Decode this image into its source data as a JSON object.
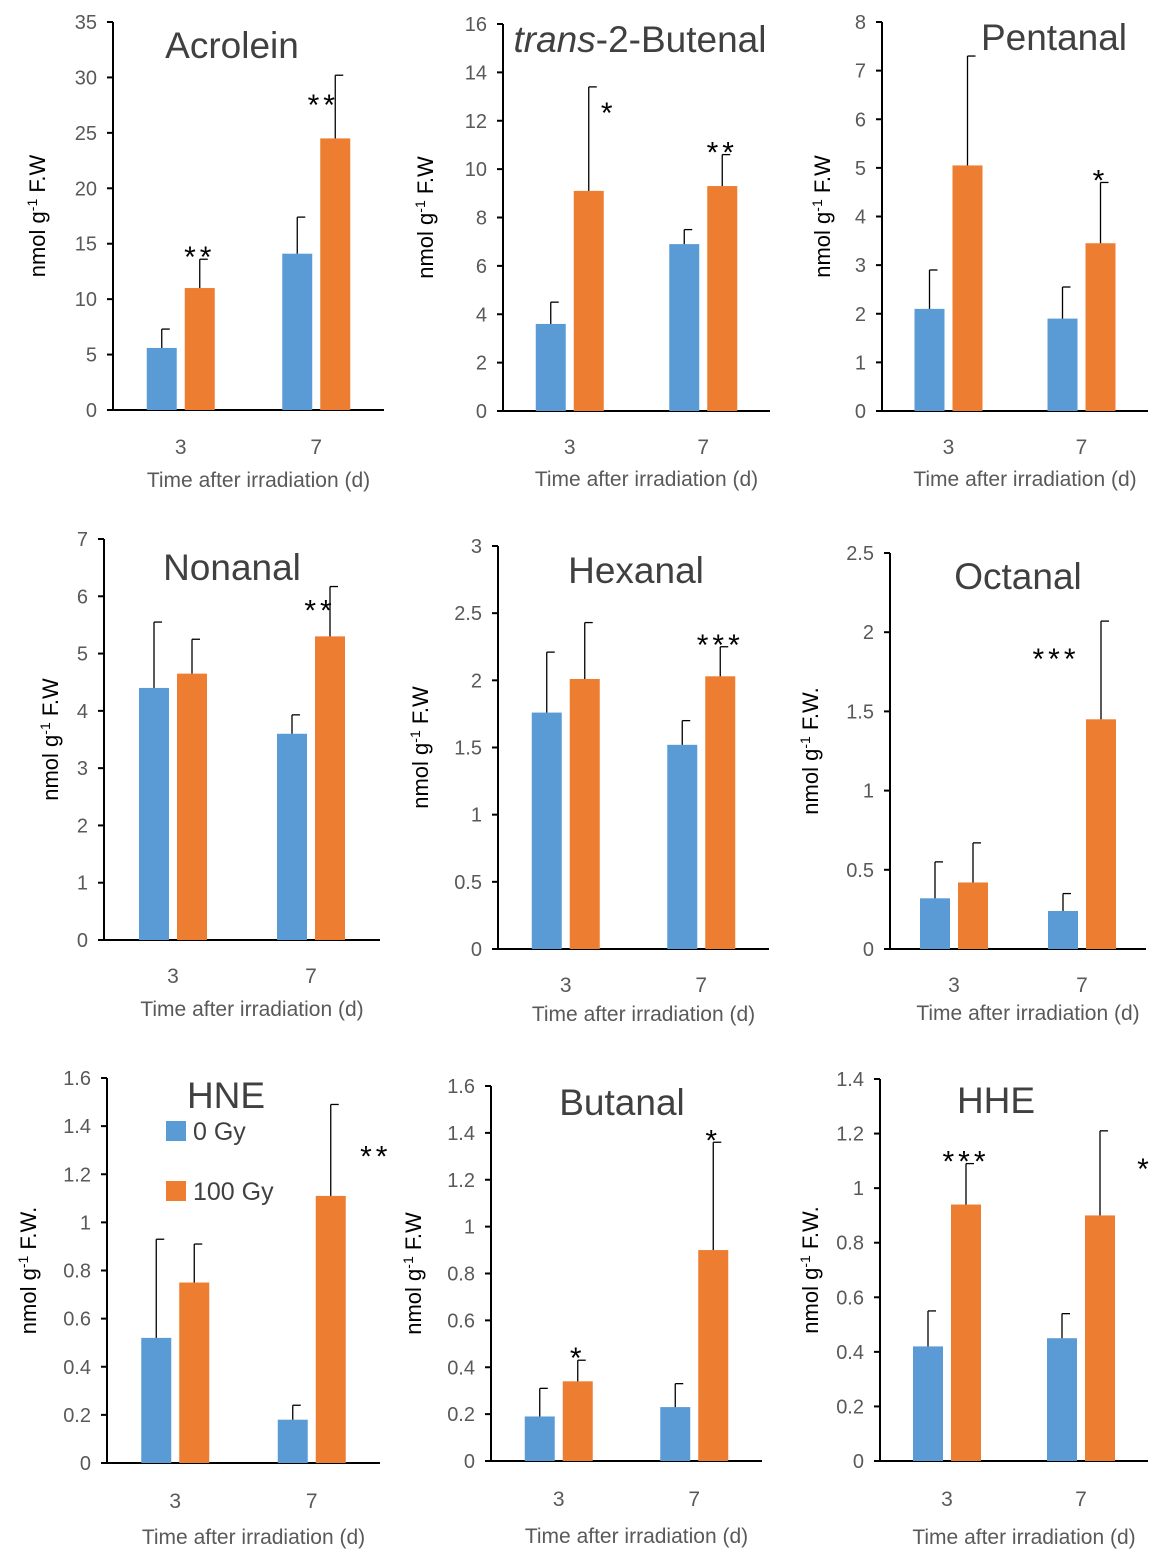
{
  "colors": {
    "control": "#5b9bd5",
    "irradiated": "#ed7d31",
    "axis": "#000000"
  },
  "chart_data": [
    {
      "type": "bar",
      "title": "Acrolein",
      "ylabel": "nmol g-1 F.W",
      "xlabel": "Time after irradiation (d)",
      "categories": [
        "3",
        "7"
      ],
      "ylim": [
        0,
        35
      ],
      "yticks": [
        "0",
        "5",
        "10",
        "15",
        "20",
        "25",
        "30",
        "35"
      ],
      "series": [
        {
          "values": [
            5.6,
            14.1
          ],
          "errors": [
            1.7,
            3.3
          ]
        },
        {
          "values": [
            11.0,
            24.5
          ],
          "errors": [
            2.6,
            5.7
          ]
        }
      ],
      "significance": [
        "**",
        "**"
      ]
    },
    {
      "type": "bar",
      "title": "trans-2-Butenal",
      "title_italic": "trans",
      "title_rest": "-2-Butenal",
      "ylabel": "nmol g-1 F.W",
      "xlabel": "Time after irradiation (d)",
      "categories": [
        "3",
        "7"
      ],
      "ylim": [
        0,
        16
      ],
      "yticks": [
        "0",
        "2",
        "4",
        "6",
        "8",
        "10",
        "12",
        "14",
        "16"
      ],
      "series": [
        {
          "values": [
            3.6,
            6.9
          ],
          "errors": [
            0.9,
            0.6
          ]
        },
        {
          "values": [
            9.1,
            9.3
          ],
          "errors": [
            4.3,
            1.3
          ]
        }
      ],
      "significance": [
        "*",
        "**"
      ]
    },
    {
      "type": "bar",
      "title": "Pentanal",
      "ylabel": "nmol g-1 F.W",
      "xlabel": "Time after irradiation (d)",
      "categories": [
        "3",
        "7"
      ],
      "ylim": [
        0,
        8
      ],
      "yticks": [
        "0",
        "1",
        "2",
        "3",
        "4",
        "5",
        "6",
        "7",
        "8"
      ],
      "series": [
        {
          "values": [
            2.1,
            1.9
          ],
          "errors": [
            0.8,
            0.65
          ]
        },
        {
          "values": [
            5.05,
            3.45
          ],
          "errors": [
            2.25,
            1.25
          ]
        }
      ],
      "significance": [
        "",
        "*"
      ]
    },
    {
      "type": "bar",
      "title": "Nonanal",
      "ylabel": "nmol g-1 F.W",
      "xlabel": "Time after irradiation (d)",
      "categories": [
        "3",
        "7"
      ],
      "ylim": [
        0,
        7
      ],
      "yticks": [
        "0",
        "1",
        "2",
        "3",
        "4",
        "5",
        "6",
        "7"
      ],
      "series": [
        {
          "values": [
            4.4,
            3.6
          ],
          "errors": [
            1.15,
            0.33
          ]
        },
        {
          "values": [
            4.65,
            5.3
          ],
          "errors": [
            0.6,
            0.87
          ]
        }
      ],
      "significance": [
        "",
        "**"
      ]
    },
    {
      "type": "bar",
      "title": "Hexanal",
      "ylabel": "nmol g-1 F.W",
      "xlabel": "Time after irradiation (d)",
      "categories": [
        "3",
        "7"
      ],
      "ylim": [
        0,
        3
      ],
      "yticks": [
        "0",
        "0.5",
        "1",
        "1.5",
        "2",
        "2.5",
        "3"
      ],
      "series": [
        {
          "values": [
            1.76,
            1.52
          ],
          "errors": [
            0.45,
            0.18
          ]
        },
        {
          "values": [
            2.01,
            2.03
          ],
          "errors": [
            0.42,
            0.22
          ]
        }
      ],
      "significance": [
        "",
        "***"
      ]
    },
    {
      "type": "bar",
      "title": "Octanal",
      "ylabel": "nmol g-1 F.W.",
      "xlabel": "Time after irradiation (d)",
      "categories": [
        "3",
        "7"
      ],
      "ylim": [
        0,
        2.5
      ],
      "yticks": [
        "0",
        "0.5",
        "1",
        "1.5",
        "2",
        "2.5"
      ],
      "series": [
        {
          "values": [
            0.32,
            0.24
          ],
          "errors": [
            0.23,
            0.11
          ]
        },
        {
          "values": [
            0.42,
            1.45
          ],
          "errors": [
            0.25,
            0.62
          ]
        }
      ],
      "significance": [
        "",
        "***"
      ]
    },
    {
      "type": "bar",
      "title": "HNE",
      "ylabel": "nmol g-1 F.W.",
      "xlabel": "Time after irradiation (d)",
      "categories": [
        "3",
        "7"
      ],
      "ylim": [
        0,
        1.6
      ],
      "yticks": [
        "0",
        "0.2",
        "0.4",
        "0.6",
        "0.8",
        "1",
        "1.2",
        "1.4",
        "1.6"
      ],
      "series": [
        {
          "name": "0 Gy",
          "values": [
            0.52,
            0.18
          ],
          "errors": [
            0.41,
            0.06
          ]
        },
        {
          "name": "100 Gy",
          "values": [
            0.75,
            1.11
          ],
          "errors": [
            0.16,
            0.38
          ]
        }
      ],
      "significance": [
        "",
        "**"
      ],
      "legend": "upper-left"
    },
    {
      "type": "bar",
      "title": "Butanal",
      "ylabel": "nmol g-1 F.W",
      "xlabel": "Time after irradiation (d)",
      "categories": [
        "3",
        "7"
      ],
      "ylim": [
        0,
        1.6
      ],
      "yticks": [
        "0",
        "0.2",
        "0.4",
        "0.6",
        "0.8",
        "1",
        "1.2",
        "1.4",
        "1.6"
      ],
      "series": [
        {
          "values": [
            0.19,
            0.23
          ],
          "errors": [
            0.12,
            0.1
          ]
        },
        {
          "values": [
            0.34,
            0.9
          ],
          "errors": [
            0.09,
            0.46
          ]
        }
      ],
      "significance": [
        "*",
        "*"
      ]
    },
    {
      "type": "bar",
      "title": "HHE",
      "ylabel": "nmol g-1 F.W.",
      "xlabel": "Time after irradiation (d)",
      "categories": [
        "3",
        "7"
      ],
      "ylim": [
        0,
        1.4
      ],
      "yticks": [
        "0",
        "0.2",
        "0.4",
        "0.6",
        "0.8",
        "1",
        "1.2",
        "1.4"
      ],
      "series": [
        {
          "values": [
            0.42,
            0.45
          ],
          "errors": [
            0.13,
            0.09
          ]
        },
        {
          "values": [
            0.94,
            0.9
          ],
          "errors": [
            0.15,
            0.31
          ]
        }
      ],
      "significance": [
        "***",
        "*"
      ]
    }
  ]
}
